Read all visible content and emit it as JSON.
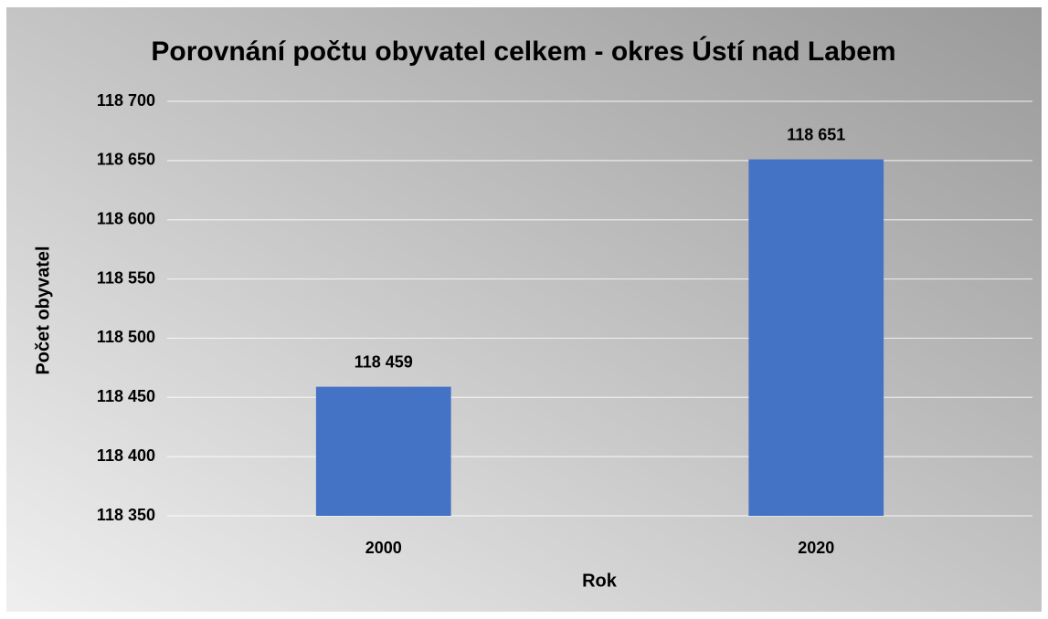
{
  "chart_data": {
    "type": "bar",
    "title": "Porovnání počtu obyvatel celkem - okres Ústí nad Labem",
    "x_label": "Rok",
    "y_label": "Počet obyvatel",
    "categories": [
      "2000",
      "2020"
    ],
    "values": [
      118459,
      118651
    ],
    "value_labels": [
      "118 459",
      "118 651"
    ],
    "color": "#4472c4",
    "ylim": [
      118350,
      118700
    ],
    "yticks": [
      {
        "value": 118350,
        "label": "118 350"
      },
      {
        "value": 118400,
        "label": "118 400"
      },
      {
        "value": 118450,
        "label": "118 450"
      },
      {
        "value": 118500,
        "label": "118 500"
      },
      {
        "value": 118550,
        "label": "118 550"
      },
      {
        "value": 118600,
        "label": "118 600"
      },
      {
        "value": 118650,
        "label": "118 650"
      },
      {
        "value": 118700,
        "label": "118 700"
      }
    ],
    "grid": true
  }
}
